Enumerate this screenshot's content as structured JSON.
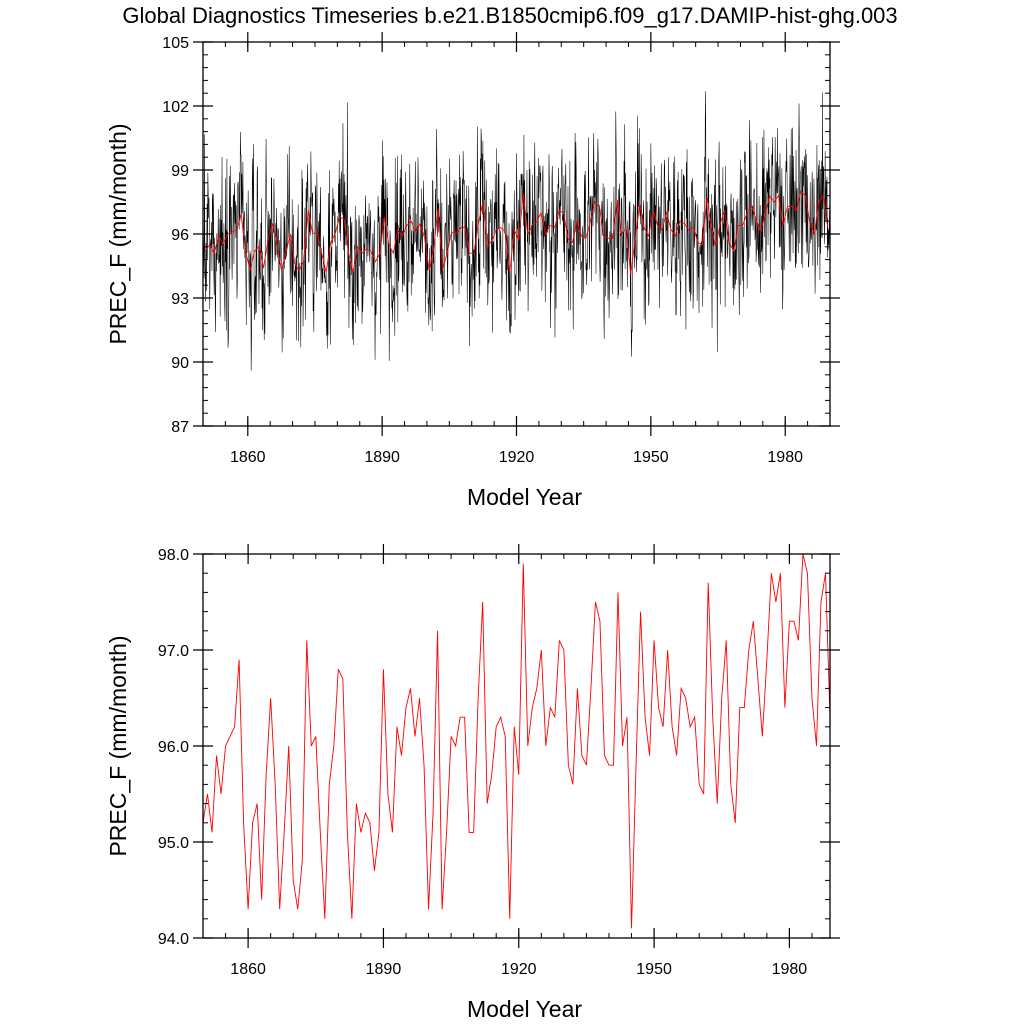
{
  "title": "Global Diagnostics Timeseries b.e21.B1850cmip6.f09_g17.DAMIP-hist-ghg.003",
  "colors": {
    "monthly": "#000000",
    "annual": "#ff0000",
    "axis": "#000000"
  },
  "chart_data": [
    {
      "type": "line",
      "panel": "top",
      "xlabel": "Model Year",
      "ylabel": "PREC_F (mm/month)",
      "xlim": [
        1850,
        1990
      ],
      "ylim": [
        87,
        105
      ],
      "xticks": [
        1860,
        1890,
        1920,
        1950,
        1980
      ],
      "yticks": [
        87,
        90,
        93,
        96,
        99,
        102,
        105
      ],
      "grid": false,
      "series": [
        {
          "key": "monthly",
          "resolution": "monthly",
          "color": "#000000",
          "range_approx": [
            89.1,
            102.7
          ]
        },
        {
          "key": "annual",
          "resolution": "annual",
          "color": "#ff0000"
        }
      ]
    },
    {
      "type": "line",
      "panel": "bottom",
      "xlabel": "Model Year",
      "ylabel": "PREC_F (mm/month)",
      "xlim": [
        1850,
        1989
      ],
      "ylim": [
        94.0,
        98.0
      ],
      "xticks": [
        1860,
        1890,
        1920,
        1950,
        1980
      ],
      "yticks": [
        "94.0",
        "95.0",
        "96.0",
        "97.0",
        "98.0"
      ],
      "grid": false,
      "series": [
        {
          "key": "annual",
          "color": "#ff0000",
          "x": [
            1850,
            1851,
            1852,
            1853,
            1854,
            1855,
            1856,
            1857,
            1858,
            1859,
            1860,
            1861,
            1862,
            1863,
            1864,
            1865,
            1866,
            1867,
            1868,
            1869,
            1870,
            1871,
            1872,
            1873,
            1874,
            1875,
            1876,
            1877,
            1878,
            1879,
            1880,
            1881,
            1882,
            1883,
            1884,
            1885,
            1886,
            1887,
            1888,
            1889,
            1890,
            1891,
            1892,
            1893,
            1894,
            1895,
            1896,
            1897,
            1898,
            1899,
            1900,
            1901,
            1902,
            1903,
            1904,
            1905,
            1906,
            1907,
            1908,
            1909,
            1910,
            1911,
            1912,
            1913,
            1914,
            1915,
            1916,
            1917,
            1918,
            1919,
            1920,
            1921,
            1922,
            1923,
            1924,
            1925,
            1926,
            1927,
            1928,
            1929,
            1930,
            1931,
            1932,
            1933,
            1934,
            1935,
            1936,
            1937,
            1938,
            1939,
            1940,
            1941,
            1942,
            1943,
            1944,
            1945,
            1946,
            1947,
            1948,
            1949,
            1950,
            1951,
            1952,
            1953,
            1954,
            1955,
            1956,
            1957,
            1958,
            1959,
            1960,
            1961,
            1962,
            1963,
            1964,
            1965,
            1966,
            1967,
            1968,
            1969,
            1970,
            1971,
            1972,
            1973,
            1974,
            1975,
            1976,
            1977,
            1978,
            1979,
            1980,
            1981,
            1982,
            1983,
            1984,
            1985,
            1986,
            1987,
            1988,
            1989
          ],
          "values": [
            95.2,
            95.5,
            95.1,
            95.9,
            95.5,
            96.0,
            96.1,
            96.2,
            96.9,
            95.2,
            94.3,
            95.2,
            95.4,
            94.4,
            95.7,
            96.5,
            95.6,
            94.3,
            95.1,
            96.0,
            94.6,
            94.3,
            94.8,
            97.1,
            96.0,
            96.1,
            95.1,
            94.2,
            95.6,
            96.0,
            96.8,
            96.7,
            95.1,
            94.2,
            95.4,
            95.1,
            95.3,
            95.2,
            94.7,
            95.1,
            96.8,
            95.5,
            95.1,
            96.2,
            95.9,
            96.4,
            96.6,
            96.1,
            96.5,
            95.8,
            94.3,
            95.3,
            97.2,
            94.3,
            95.1,
            96.1,
            96.0,
            96.3,
            96.3,
            95.1,
            95.1,
            96.5,
            97.5,
            95.4,
            95.7,
            96.2,
            96.3,
            96.1,
            94.2,
            96.2,
            95.7,
            97.9,
            96.0,
            96.4,
            96.6,
            97.0,
            96.0,
            96.4,
            96.3,
            97.1,
            97.0,
            95.8,
            95.6,
            96.6,
            95.9,
            95.8,
            96.6,
            97.5,
            97.3,
            95.9,
            95.8,
            95.8,
            97.6,
            96.0,
            96.3,
            94.1,
            95.8,
            97.4,
            96.3,
            95.9,
            97.1,
            96.4,
            96.2,
            97.0,
            96.2,
            95.9,
            96.6,
            96.5,
            96.2,
            96.3,
            95.6,
            95.5,
            97.7,
            96.3,
            95.4,
            96.5,
            97.1,
            95.6,
            95.2,
            96.4,
            96.4,
            97.0,
            97.3,
            96.7,
            96.1,
            96.9,
            97.8,
            97.5,
            97.8,
            96.4,
            97.3,
            97.3,
            97.1,
            98.0,
            97.8,
            96.5,
            96.0,
            97.5,
            97.8,
            96.3
          ]
        }
      ]
    }
  ]
}
